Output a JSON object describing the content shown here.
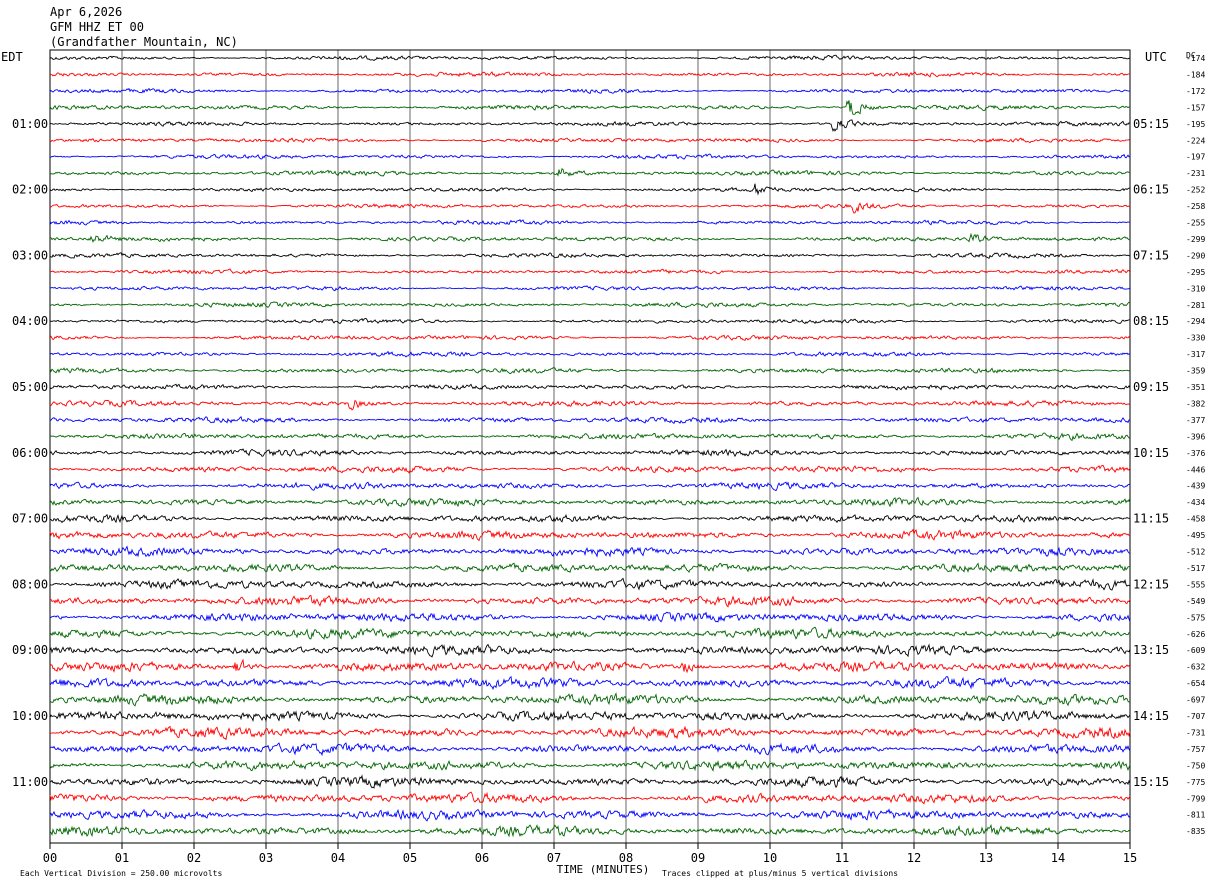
{
  "header": {
    "date": "Apr 6,2026",
    "channel": "GFM HHZ ET 00",
    "location": "(Grandfather Mountain, NC)"
  },
  "left_zone": "EDT",
  "right_zone": "UTC",
  "dc_label": "DC",
  "chart_data": {
    "type": "line",
    "subtype": "helicorder",
    "xlabel": "TIME (MINUTES)",
    "xlim": [
      0,
      15
    ],
    "x_ticks": [
      "00",
      "01",
      "02",
      "03",
      "04",
      "05",
      "06",
      "07",
      "08",
      "09",
      "10",
      "11",
      "12",
      "13",
      "14",
      "15"
    ],
    "row_minutes": 15,
    "trace_colors": [
      "#000000",
      "#ff0000",
      "#0000ff",
      "#006400"
    ],
    "left_hour_labels": [
      "01:00",
      "02:00",
      "03:00",
      "04:00",
      "05:00",
      "06:00",
      "07:00",
      "08:00",
      "09:00",
      "10:00",
      "11:00"
    ],
    "right_hour_labels": [
      "05:15",
      "06:15",
      "07:15",
      "08:15",
      "09:15",
      "10:15",
      "11:15",
      "12:15",
      "13:15",
      "14:15",
      "15:15"
    ],
    "dc_offsets": [
      "-174",
      "-184",
      "-172",
      "-157",
      "-195",
      "-224",
      "-197",
      "-231",
      "-252",
      "-258",
      "-255",
      "-299",
      "-290",
      "-295",
      "-310",
      "-281",
      "-294",
      "-330",
      "-317",
      "-359",
      "-351",
      "-382",
      "-377",
      "-396",
      "-376",
      "-446",
      "-439",
      "-434",
      "-458",
      "-495",
      "-512",
      "-517",
      "-555",
      "-549",
      "-575",
      "-626",
      "-609",
      "-632",
      "-654",
      "-697",
      "-707",
      "-731",
      "-757",
      "-750",
      "-775",
      "-799",
      "-811",
      "-835"
    ],
    "row_amplitudes": [
      1,
      1,
      1,
      1.1,
      1,
      1,
      1,
      1.1,
      1,
      1,
      1,
      1.1,
      1,
      1,
      1,
      1.1,
      1,
      1.1,
      1.1,
      1.2,
      1.2,
      1.3,
      1.3,
      1.4,
      1.5,
      1.6,
      1.6,
      1.8,
      1.8,
      2,
      2,
      2,
      2.1,
      2.2,
      2.2,
      2.3,
      2.3,
      2.4,
      2.4,
      2.4,
      2.4,
      2.4,
      2.4,
      2.3,
      2.3,
      2.3,
      2.3,
      2.3
    ],
    "events": [
      {
        "row": 3,
        "minute": 11.1,
        "amplitude": 9
      },
      {
        "row": 4,
        "minute": 10.9,
        "amplitude": 6
      },
      {
        "row": 7,
        "minute": 7.1,
        "amplitude": 3
      },
      {
        "row": 8,
        "minute": 9.8,
        "amplitude": 4
      },
      {
        "row": 9,
        "minute": 11.2,
        "amplitude": 3
      },
      {
        "row": 11,
        "minute": 0.6,
        "amplitude": 3
      },
      {
        "row": 11,
        "minute": 12.8,
        "amplitude": 3
      },
      {
        "row": 21,
        "minute": 4.2,
        "amplitude": 3
      },
      {
        "row": 37,
        "minute": 2.6,
        "amplitude": 5
      },
      {
        "row": 37,
        "minute": 8.8,
        "amplitude": 4
      }
    ]
  },
  "footer": {
    "scale_note": "Each Vertical Division =  250.00 microvolts",
    "clip_note": "Traces clipped at plus/minus 5 vertical divisions"
  }
}
